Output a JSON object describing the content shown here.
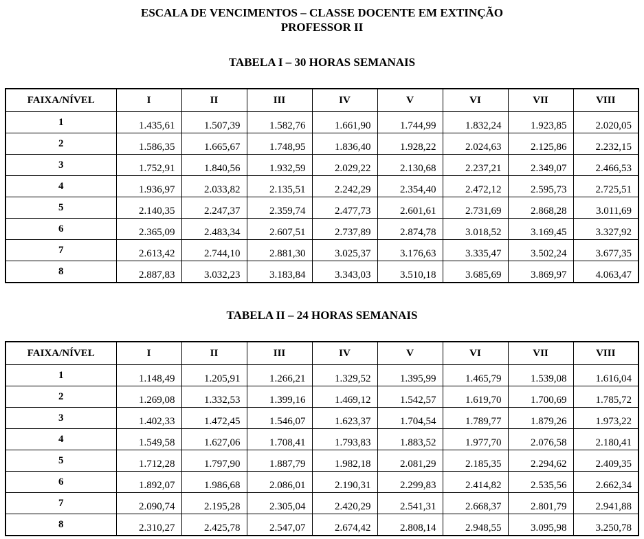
{
  "page": {
    "title_line1": "ESCALA DE VENCIMENTOS – CLASSE DOCENTE EM EXTINÇÃO",
    "title_line2": "PROFESSOR II"
  },
  "tables": [
    {
      "caption": "TABELA I – 30 HORAS SEMANAIS",
      "headers": [
        "FAIXA/NÍVEL",
        "I",
        "II",
        "III",
        "IV",
        "V",
        "VI",
        "VII",
        "VIII"
      ],
      "rows": [
        {
          "label": "1",
          "values": [
            "1.435,61",
            "1.507,39",
            "1.582,76",
            "1.661,90",
            "1.744,99",
            "1.832,24",
            "1.923,85",
            "2.020,05"
          ]
        },
        {
          "label": "2",
          "values": [
            "1.586,35",
            "1.665,67",
            "1.748,95",
            "1.836,40",
            "1.928,22",
            "2.024,63",
            "2.125,86",
            "2.232,15"
          ]
        },
        {
          "label": "3",
          "values": [
            "1.752,91",
            "1.840,56",
            "1.932,59",
            "2.029,22",
            "2.130,68",
            "2.237,21",
            "2.349,07",
            "2.466,53"
          ]
        },
        {
          "label": "4",
          "values": [
            "1.936,97",
            "2.033,82",
            "2.135,51",
            "2.242,29",
            "2.354,40",
            "2.472,12",
            "2.595,73",
            "2.725,51"
          ]
        },
        {
          "label": "5",
          "values": [
            "2.140,35",
            "2.247,37",
            "2.359,74",
            "2.477,73",
            "2.601,61",
            "2.731,69",
            "2.868,28",
            "3.011,69"
          ]
        },
        {
          "label": "6",
          "values": [
            "2.365,09",
            "2.483,34",
            "2.607,51",
            "2.737,89",
            "2.874,78",
            "3.018,52",
            "3.169,45",
            "3.327,92"
          ]
        },
        {
          "label": "7",
          "values": [
            "2.613,42",
            "2.744,10",
            "2.881,30",
            "3.025,37",
            "3.176,63",
            "3.335,47",
            "3.502,24",
            "3.677,35"
          ]
        },
        {
          "label": "8",
          "values": [
            "2.887,83",
            "3.032,23",
            "3.183,84",
            "3.343,03",
            "3.510,18",
            "3.685,69",
            "3.869,97",
            "4.063,47"
          ]
        }
      ]
    },
    {
      "caption": "TABELA II – 24 HORAS SEMANAIS",
      "headers": [
        "FAIXA/NÍVEL",
        "I",
        "II",
        "III",
        "IV",
        "V",
        "VI",
        "VII",
        "VIII"
      ],
      "rows": [
        {
          "label": "1",
          "values": [
            "1.148,49",
            "1.205,91",
            "1.266,21",
            "1.329,52",
            "1.395,99",
            "1.465,79",
            "1.539,08",
            "1.616,04"
          ]
        },
        {
          "label": "2",
          "values": [
            "1.269,08",
            "1.332,53",
            "1.399,16",
            "1.469,12",
            "1.542,57",
            "1.619,70",
            "1.700,69",
            "1.785,72"
          ]
        },
        {
          "label": "3",
          "values": [
            "1.402,33",
            "1.472,45",
            "1.546,07",
            "1.623,37",
            "1.704,54",
            "1.789,77",
            "1.879,26",
            "1.973,22"
          ]
        },
        {
          "label": "4",
          "values": [
            "1.549,58",
            "1.627,06",
            "1.708,41",
            "1.793,83",
            "1.883,52",
            "1.977,70",
            "2.076,58",
            "2.180,41"
          ]
        },
        {
          "label": "5",
          "values": [
            "1.712,28",
            "1.797,90",
            "1.887,79",
            "1.982,18",
            "2.081,29",
            "2.185,35",
            "2.294,62",
            "2.409,35"
          ]
        },
        {
          "label": "6",
          "values": [
            "1.892,07",
            "1.986,68",
            "2.086,01",
            "2.190,31",
            "2.299,83",
            "2.414,82",
            "2.535,56",
            "2.662,34"
          ]
        },
        {
          "label": "7",
          "values": [
            "2.090,74",
            "2.195,28",
            "2.305,04",
            "2.420,29",
            "2.541,31",
            "2.668,37",
            "2.801,79",
            "2.941,88"
          ]
        },
        {
          "label": "8",
          "values": [
            "2.310,27",
            "2.425,78",
            "2.547,07",
            "2.674,42",
            "2.808,14",
            "2.948,55",
            "3.095,98",
            "3.250,78"
          ]
        }
      ]
    }
  ]
}
